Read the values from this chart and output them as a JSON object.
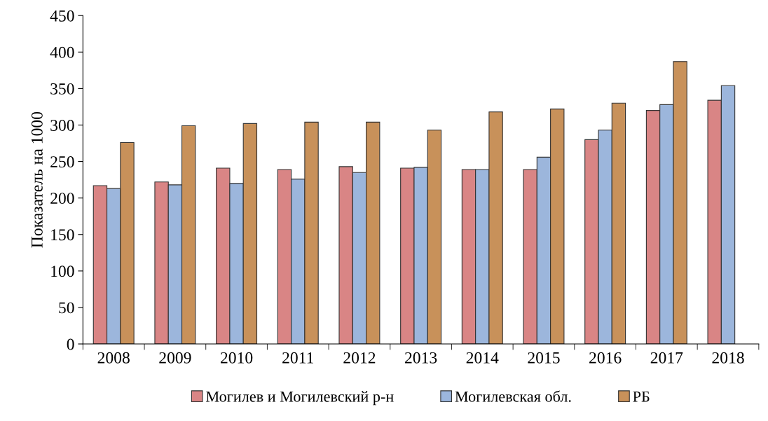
{
  "chart_data": {
    "type": "bar",
    "ylabel": "Показатель на 1000",
    "categories": [
      "2008",
      "2009",
      "2010",
      "2011",
      "2012",
      "2013",
      "2014",
      "2015",
      "2016",
      "2017",
      "2018"
    ],
    "series": [
      {
        "name": "Могилев и Могилевский р-н",
        "color": "#d98585",
        "values": [
          217,
          222,
          241,
          239,
          243,
          241,
          239,
          239,
          280,
          320,
          334
        ]
      },
      {
        "name": "Могилевская обл.",
        "color": "#9cb6dc",
        "values": [
          213,
          218,
          220,
          226,
          235,
          242,
          239,
          256,
          293,
          328,
          354
        ]
      },
      {
        "name": "РБ",
        "color": "#c8915a",
        "values": [
          276,
          299,
          302,
          304,
          304,
          293,
          318,
          322,
          330,
          387,
          null
        ]
      }
    ],
    "ylim": [
      0,
      450
    ],
    "yticks": [
      0,
      50,
      100,
      150,
      200,
      250,
      300,
      350,
      400,
      450
    ],
    "grid": false,
    "legend": "bottom"
  }
}
